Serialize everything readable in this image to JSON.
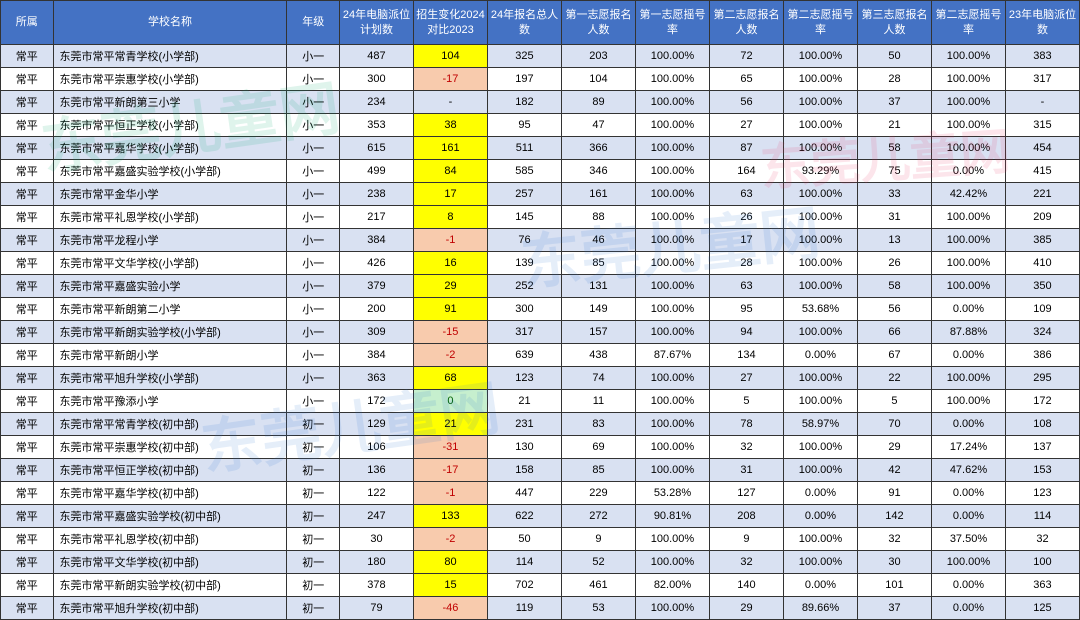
{
  "watermark_text": "东莞儿童网",
  "table": {
    "columns": [
      {
        "key": "district",
        "label": "所属",
        "width": 44
      },
      {
        "key": "school",
        "label": "学校名称",
        "width": 196
      },
      {
        "key": "grade",
        "label": "年级",
        "width": 44
      },
      {
        "key": "plan24",
        "label": "24年电脑派位计划数",
        "width": 62
      },
      {
        "key": "delta",
        "label": "招生变化2024对比2023",
        "width": 62
      },
      {
        "key": "total24",
        "label": "24年报名总人数",
        "width": 62
      },
      {
        "key": "c1_n",
        "label": "第一志愿报名人数",
        "width": 62
      },
      {
        "key": "c1_r",
        "label": "第一志愿摇号率",
        "width": 62
      },
      {
        "key": "c2_n",
        "label": "第二志愿报名人数",
        "width": 62
      },
      {
        "key": "c2_r",
        "label": "第二志愿摇号率",
        "width": 62
      },
      {
        "key": "c3_n",
        "label": "第三志愿报名人数",
        "width": 62
      },
      {
        "key": "c3_r",
        "label": "第二志愿摇号率",
        "width": 62
      },
      {
        "key": "plan23",
        "label": "23年电脑派位数",
        "width": 62
      }
    ],
    "rows": [
      {
        "district": "常平",
        "school": "东莞市常平常青学校(小学部)",
        "grade": "小一",
        "plan24": "487",
        "delta": "104",
        "delta_hl": "yellow",
        "total24": "325",
        "c1_n": "203",
        "c1_r": "100.00%",
        "c2_n": "72",
        "c2_r": "100.00%",
        "c3_n": "50",
        "c3_r": "100.00%",
        "plan23": "383"
      },
      {
        "district": "常平",
        "school": "东莞市常平崇惠学校(小学部)",
        "grade": "小一",
        "plan24": "300",
        "delta": "-17",
        "delta_hl": "pink",
        "total24": "197",
        "c1_n": "104",
        "c1_r": "100.00%",
        "c2_n": "65",
        "c2_r": "100.00%",
        "c3_n": "28",
        "c3_r": "100.00%",
        "plan23": "317"
      },
      {
        "district": "常平",
        "school": "东莞市常平新朗第三小学",
        "grade": "小一",
        "plan24": "234",
        "delta": "-",
        "delta_hl": "",
        "total24": "182",
        "c1_n": "89",
        "c1_r": "100.00%",
        "c2_n": "56",
        "c2_r": "100.00%",
        "c3_n": "37",
        "c3_r": "100.00%",
        "plan23": "-"
      },
      {
        "district": "常平",
        "school": "东莞市常平恒正学校(小学部)",
        "grade": "小一",
        "plan24": "353",
        "delta": "38",
        "delta_hl": "yellow",
        "total24": "95",
        "c1_n": "47",
        "c1_r": "100.00%",
        "c2_n": "27",
        "c2_r": "100.00%",
        "c3_n": "21",
        "c3_r": "100.00%",
        "plan23": "315"
      },
      {
        "district": "常平",
        "school": "东莞市常平嘉华学校(小学部)",
        "grade": "小一",
        "plan24": "615",
        "delta": "161",
        "delta_hl": "yellow",
        "total24": "511",
        "c1_n": "366",
        "c1_r": "100.00%",
        "c2_n": "87",
        "c2_r": "100.00%",
        "c3_n": "58",
        "c3_r": "100.00%",
        "plan23": "454"
      },
      {
        "district": "常平",
        "school": "东莞市常平嘉盛实验学校(小学部)",
        "grade": "小一",
        "plan24": "499",
        "delta": "84",
        "delta_hl": "yellow",
        "total24": "585",
        "c1_n": "346",
        "c1_r": "100.00%",
        "c2_n": "164",
        "c2_r": "93.29%",
        "c3_n": "75",
        "c3_r": "0.00%",
        "plan23": "415"
      },
      {
        "district": "常平",
        "school": "东莞市常平金华小学",
        "grade": "小一",
        "plan24": "238",
        "delta": "17",
        "delta_hl": "yellow",
        "total24": "257",
        "c1_n": "161",
        "c1_r": "100.00%",
        "c2_n": "63",
        "c2_r": "100.00%",
        "c3_n": "33",
        "c3_r": "42.42%",
        "plan23": "221"
      },
      {
        "district": "常平",
        "school": "东莞市常平礼恩学校(小学部)",
        "grade": "小一",
        "plan24": "217",
        "delta": "8",
        "delta_hl": "yellow",
        "total24": "145",
        "c1_n": "88",
        "c1_r": "100.00%",
        "c2_n": "26",
        "c2_r": "100.00%",
        "c3_n": "31",
        "c3_r": "100.00%",
        "plan23": "209"
      },
      {
        "district": "常平",
        "school": "东莞市常平龙程小学",
        "grade": "小一",
        "plan24": "384",
        "delta": "-1",
        "delta_hl": "pink",
        "total24": "76",
        "c1_n": "46",
        "c1_r": "100.00%",
        "c2_n": "17",
        "c2_r": "100.00%",
        "c3_n": "13",
        "c3_r": "100.00%",
        "plan23": "385"
      },
      {
        "district": "常平",
        "school": "东莞市常平文华学校(小学部)",
        "grade": "小一",
        "plan24": "426",
        "delta": "16",
        "delta_hl": "yellow",
        "total24": "139",
        "c1_n": "85",
        "c1_r": "100.00%",
        "c2_n": "28",
        "c2_r": "100.00%",
        "c3_n": "26",
        "c3_r": "100.00%",
        "plan23": "410"
      },
      {
        "district": "常平",
        "school": "东莞市常平嘉盛实验小学",
        "grade": "小一",
        "plan24": "379",
        "delta": "29",
        "delta_hl": "yellow",
        "total24": "252",
        "c1_n": "131",
        "c1_r": "100.00%",
        "c2_n": "63",
        "c2_r": "100.00%",
        "c3_n": "58",
        "c3_r": "100.00%",
        "plan23": "350"
      },
      {
        "district": "常平",
        "school": "东莞市常平新朗第二小学",
        "grade": "小一",
        "plan24": "200",
        "delta": "91",
        "delta_hl": "yellow",
        "total24": "300",
        "c1_n": "149",
        "c1_r": "100.00%",
        "c2_n": "95",
        "c2_r": "53.68%",
        "c3_n": "56",
        "c3_r": "0.00%",
        "plan23": "109"
      },
      {
        "district": "常平",
        "school": "东莞市常平新朗实验学校(小学部)",
        "grade": "小一",
        "plan24": "309",
        "delta": "-15",
        "delta_hl": "pink",
        "total24": "317",
        "c1_n": "157",
        "c1_r": "100.00%",
        "c2_n": "94",
        "c2_r": "100.00%",
        "c3_n": "66",
        "c3_r": "87.88%",
        "plan23": "324"
      },
      {
        "district": "常平",
        "school": "东莞市常平新朗小学",
        "grade": "小一",
        "plan24": "384",
        "delta": "-2",
        "delta_hl": "pink",
        "total24": "639",
        "c1_n": "438",
        "c1_r": "87.67%",
        "c2_n": "134",
        "c2_r": "0.00%",
        "c3_n": "67",
        "c3_r": "0.00%",
        "plan23": "386"
      },
      {
        "district": "常平",
        "school": "东莞市常平旭升学校(小学部)",
        "grade": "小一",
        "plan24": "363",
        "delta": "68",
        "delta_hl": "yellow",
        "total24": "123",
        "c1_n": "74",
        "c1_r": "100.00%",
        "c2_n": "27",
        "c2_r": "100.00%",
        "c3_n": "22",
        "c3_r": "100.00%",
        "plan23": "295"
      },
      {
        "district": "常平",
        "school": "东莞市常平豫添小学",
        "grade": "小一",
        "plan24": "172",
        "delta": "0",
        "delta_hl": "green",
        "total24": "21",
        "c1_n": "11",
        "c1_r": "100.00%",
        "c2_n": "5",
        "c2_r": "100.00%",
        "c3_n": "5",
        "c3_r": "100.00%",
        "plan23": "172"
      },
      {
        "district": "常平",
        "school": "东莞市常平常青学校(初中部)",
        "grade": "初一",
        "plan24": "129",
        "delta": "21",
        "delta_hl": "yellow",
        "total24": "231",
        "c1_n": "83",
        "c1_r": "100.00%",
        "c2_n": "78",
        "c2_r": "58.97%",
        "c3_n": "70",
        "c3_r": "0.00%",
        "plan23": "108"
      },
      {
        "district": "常平",
        "school": "东莞市常平崇惠学校(初中部)",
        "grade": "初一",
        "plan24": "106",
        "delta": "-31",
        "delta_hl": "pink",
        "total24": "130",
        "c1_n": "69",
        "c1_r": "100.00%",
        "c2_n": "32",
        "c2_r": "100.00%",
        "c3_n": "29",
        "c3_r": "17.24%",
        "plan23": "137"
      },
      {
        "district": "常平",
        "school": "东莞市常平恒正学校(初中部)",
        "grade": "初一",
        "plan24": "136",
        "delta": "-17",
        "delta_hl": "pink",
        "total24": "158",
        "c1_n": "85",
        "c1_r": "100.00%",
        "c2_n": "31",
        "c2_r": "100.00%",
        "c3_n": "42",
        "c3_r": "47.62%",
        "plan23": "153"
      },
      {
        "district": "常平",
        "school": "东莞市常平嘉华学校(初中部)",
        "grade": "初一",
        "plan24": "122",
        "delta": "-1",
        "delta_hl": "pink",
        "total24": "447",
        "c1_n": "229",
        "c1_r": "53.28%",
        "c2_n": "127",
        "c2_r": "0.00%",
        "c3_n": "91",
        "c3_r": "0.00%",
        "plan23": "123"
      },
      {
        "district": "常平",
        "school": "东莞市常平嘉盛实验学校(初中部)",
        "grade": "初一",
        "plan24": "247",
        "delta": "133",
        "delta_hl": "yellow",
        "total24": "622",
        "c1_n": "272",
        "c1_r": "90.81%",
        "c2_n": "208",
        "c2_r": "0.00%",
        "c3_n": "142",
        "c3_r": "0.00%",
        "plan23": "114"
      },
      {
        "district": "常平",
        "school": "东莞市常平礼恩学校(初中部)",
        "grade": "初一",
        "plan24": "30",
        "delta": "-2",
        "delta_hl": "pink",
        "total24": "50",
        "c1_n": "9",
        "c1_r": "100.00%",
        "c2_n": "9",
        "c2_r": "100.00%",
        "c3_n": "32",
        "c3_r": "37.50%",
        "plan23": "32"
      },
      {
        "district": "常平",
        "school": "东莞市常平文华学校(初中部)",
        "grade": "初一",
        "plan24": "180",
        "delta": "80",
        "delta_hl": "yellow",
        "total24": "114",
        "c1_n": "52",
        "c1_r": "100.00%",
        "c2_n": "32",
        "c2_r": "100.00%",
        "c3_n": "30",
        "c3_r": "100.00%",
        "plan23": "100"
      },
      {
        "district": "常平",
        "school": "东莞市常平新朗实验学校(初中部)",
        "grade": "初一",
        "plan24": "378",
        "delta": "15",
        "delta_hl": "yellow",
        "total24": "702",
        "c1_n": "461",
        "c1_r": "82.00%",
        "c2_n": "140",
        "c2_r": "0.00%",
        "c3_n": "101",
        "c3_r": "0.00%",
        "plan23": "363"
      },
      {
        "district": "常平",
        "school": "东莞市常平旭升学校(初中部)",
        "grade": "初一",
        "plan24": "79",
        "delta": "-46",
        "delta_hl": "pink",
        "total24": "119",
        "c1_n": "53",
        "c1_r": "100.00%",
        "c2_n": "29",
        "c2_r": "89.66%",
        "c3_n": "37",
        "c3_r": "0.00%",
        "plan23": "125"
      }
    ]
  }
}
